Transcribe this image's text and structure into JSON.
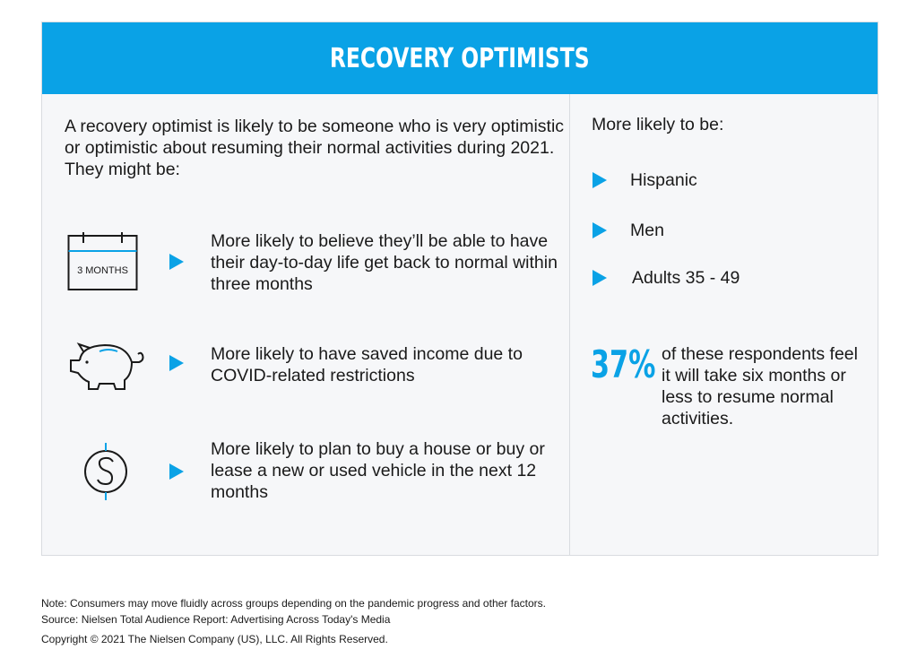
{
  "header": {
    "title": "RECOVERY OPTIMISTS"
  },
  "intro": {
    "text": "A recovery optimist is likely to be someone who is very optimistic or optimistic about resuming their normal activities during 2021.",
    "lead": "They might be:"
  },
  "traits": [
    {
      "icon": "calendar-icon",
      "icon_label": "3 MONTHS",
      "text": "More likely to believe they’ll be able to have their day-to-day life get back to normal within three months"
    },
    {
      "icon": "piggy-bank-icon",
      "text": "More likely to have saved income due to COVID-related restrictions"
    },
    {
      "icon": "dollar-coin-icon",
      "text": "More likely to plan to buy a house or buy or lease a new or used vehicle in the next 12 months"
    }
  ],
  "demographics": {
    "heading": "More likely to be:",
    "items": [
      "Hispanic",
      "Men",
      "Adults 35 - 49"
    ]
  },
  "stat": {
    "value": "37%",
    "text": "of these respondents feel it will take six months or less to resume normal activities."
  },
  "footer": {
    "note": "Note: Consumers may move fluidly across groups depending on the pandemic progress and other factors.",
    "source": "Source: Nielsen Total Audience Report: Advertising Across Today's Media",
    "copyright": "Copyright © 2021 The Nielsen Company (US), LLC. All Rights Reserved."
  },
  "colors": {
    "accent": "#0aa2e6",
    "panel": "#f6f7f9",
    "text": "#1a1a1a"
  }
}
